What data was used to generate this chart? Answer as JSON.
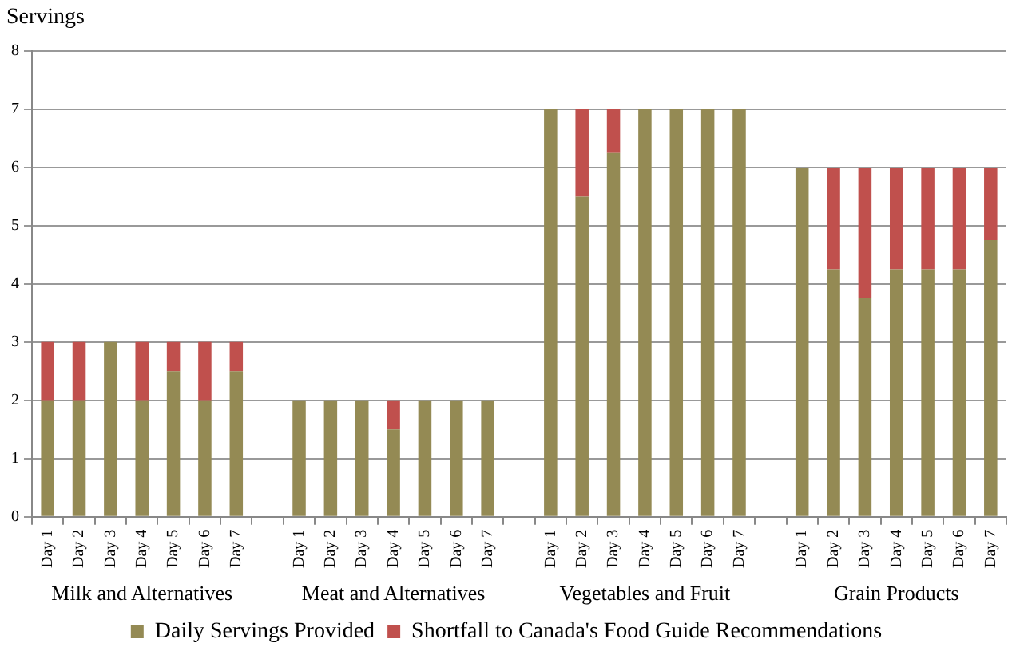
{
  "chart_data": {
    "type": "bar",
    "stacked": true,
    "ylabel": "Servings",
    "categories": [
      "Day 1",
      "Day 2",
      "Day 3",
      "Day 4",
      "Day 5",
      "Day 6",
      "Day 7",
      null,
      "Day 1",
      "Day 2",
      "Day 3",
      "Day 4",
      "Day 5",
      "Day 6",
      "Day 7",
      null,
      "Day 1",
      "Day 2",
      "Day 3",
      "Day 4",
      "Day 5",
      "Day 6",
      "Day 7",
      null,
      "Day 1",
      "Day 2",
      "Day 3",
      "Day 4",
      "Day 5",
      "Day 6",
      "Day 7"
    ],
    "series": [
      {
        "name": "Daily Servings Provided",
        "color": "#948a54",
        "values": [
          2,
          2,
          3,
          2,
          2.5,
          2,
          2.5,
          null,
          2,
          2,
          2,
          1.5,
          2,
          2,
          2,
          null,
          7,
          5.5,
          6.25,
          7,
          7,
          7,
          7,
          null,
          6,
          4.25,
          3.75,
          4.25,
          4.25,
          4.25,
          4.75
        ]
      },
      {
        "name": "Shortfall to Canada's Food Guide Recommendations",
        "color": "#c0504d",
        "values": [
          1,
          1,
          0,
          1,
          0.5,
          1,
          0.5,
          null,
          0,
          0,
          0,
          0.5,
          0,
          0,
          0,
          null,
          0,
          1.5,
          0.75,
          0,
          0,
          0,
          0,
          null,
          0,
          1.75,
          2.25,
          1.75,
          1.75,
          1.75,
          1.25
        ]
      }
    ],
    "annotations": [
      "Milk and Alternatives",
      "Meat and Alternatives",
      "Vegetables and Fruit",
      "Grain Products"
    ],
    "ylim": [
      0,
      8
    ],
    "yticks": [
      0,
      1,
      2,
      3,
      4,
      5,
      6,
      7,
      8
    ],
    "grid": "y",
    "legend": "bottom"
  }
}
